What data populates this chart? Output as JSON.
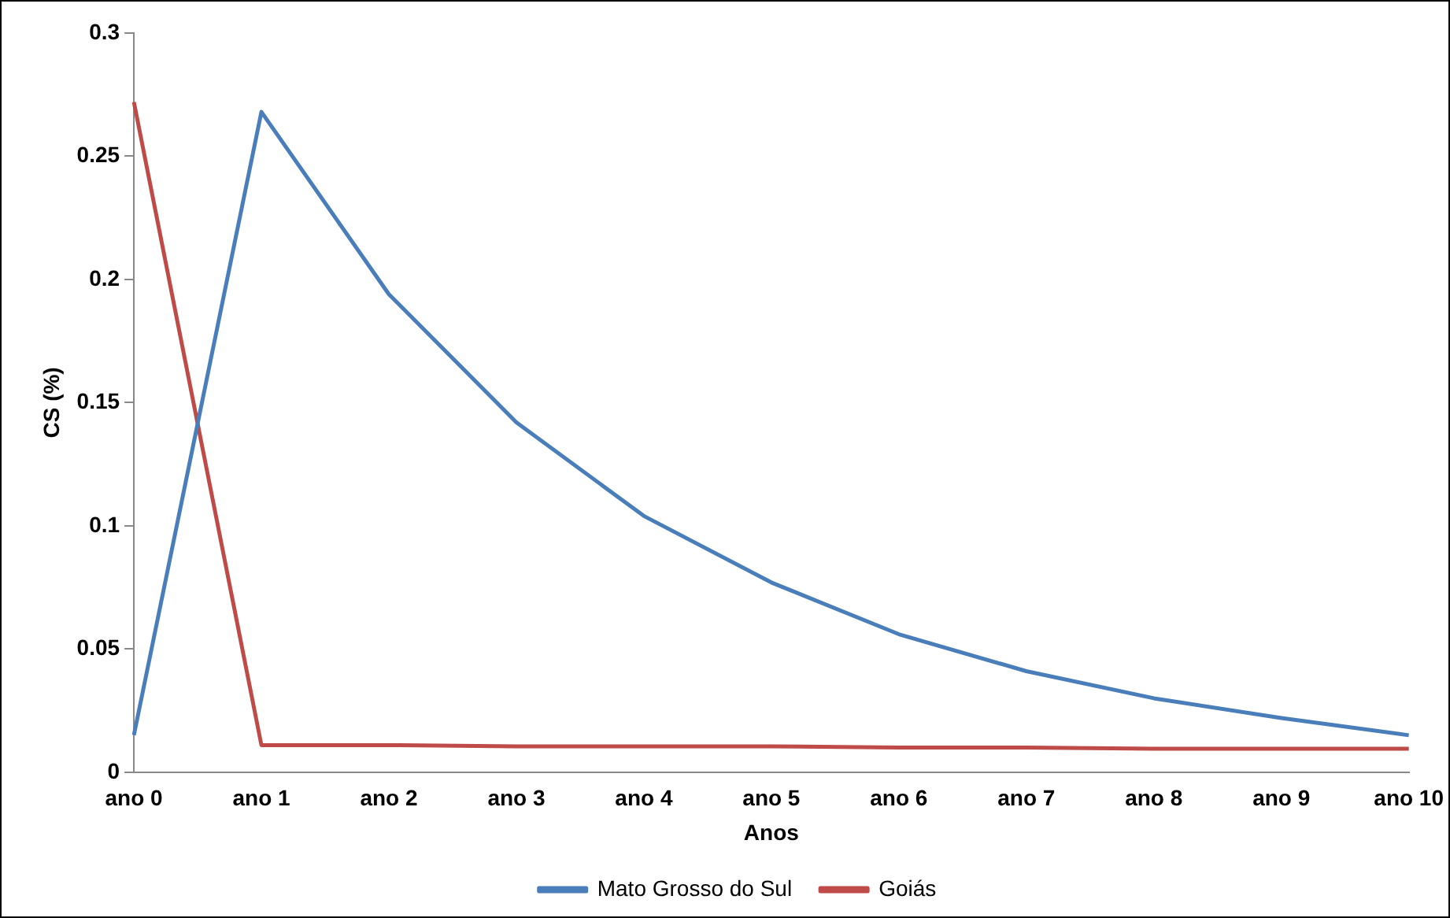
{
  "chart_data": {
    "type": "line",
    "xlabel": "Anos",
    "ylabel": "CS (%)",
    "categories": [
      "ano 0",
      "ano 1",
      "ano 2",
      "ano 3",
      "ano 4",
      "ano 5",
      "ano 6",
      "ano 7",
      "ano 8",
      "ano 9",
      "ano 10"
    ],
    "series": [
      {
        "name": "Mato Grosso do Sul",
        "color": "#4a7ebb",
        "values": [
          0.015,
          0.268,
          0.194,
          0.142,
          0.104,
          0.077,
          0.056,
          0.041,
          0.03,
          0.022,
          0.015
        ]
      },
      {
        "name": "Goiás",
        "color": "#be4b48",
        "values": [
          0.272,
          0.011,
          0.011,
          0.0105,
          0.0105,
          0.0105,
          0.01,
          0.01,
          0.0095,
          0.0095,
          0.0095
        ]
      }
    ],
    "ylim": [
      0,
      0.3
    ],
    "yticks": [
      0,
      0.05,
      0.1,
      0.15,
      0.2,
      0.25,
      0.3
    ],
    "grid": false,
    "legend": "bottom",
    "marker": "none"
  }
}
